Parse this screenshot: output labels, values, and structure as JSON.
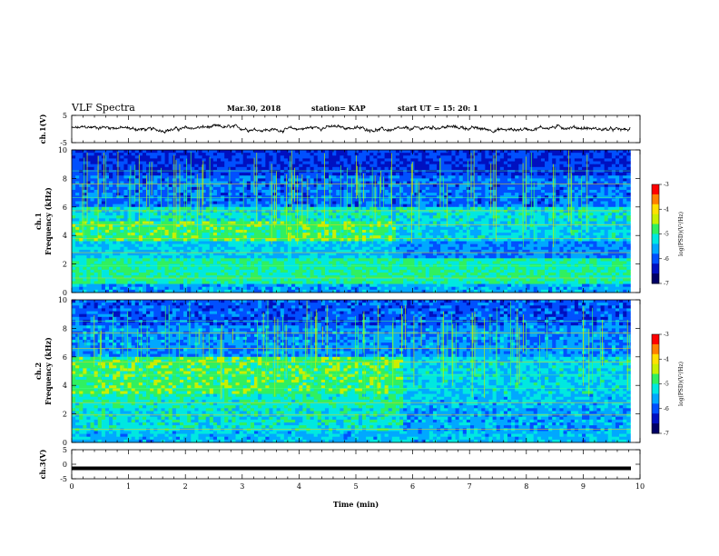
{
  "header": {
    "title": "VLF  Spectra",
    "date": "Mar.30, 2018",
    "station": "station= KAP",
    "start": "start  UT  =    15: 20: 1"
  },
  "colors": {
    "spectrogram_scale": [
      "#000066",
      "#0010c0",
      "#0050ff",
      "#00a8ff",
      "#00e8e0",
      "#30f060",
      "#c8f000",
      "#ffe000",
      "#ff8000",
      "#ff0000",
      "#ffffff"
    ],
    "trace": "#000000"
  },
  "chart_data": [
    {
      "type": "line",
      "panel": "ch1_waveform",
      "ylabel": "ch.1(V)",
      "ylim": [
        -5,
        5
      ],
      "yticks": [
        "5",
        "-5"
      ],
      "xlim": [
        0,
        10
      ],
      "description_series": "voltage trace fluctuating roughly between -1 and +1.5 V"
    },
    {
      "type": "heatmap",
      "panel": "ch1_spectrogram",
      "ylabel": "ch.1\nFrequency  (kHz)",
      "xlim": [
        0,
        10
      ],
      "ylim": [
        0,
        10
      ],
      "yticks": [
        "0",
        "2",
        "4",
        "6",
        "8",
        "10"
      ],
      "colorbar": {
        "label": "log(PSD)(V²/Hz)",
        "range": [
          -7,
          -3
        ],
        "ticks": [
          "-3",
          "-4",
          "-5",
          "-6",
          "-7"
        ]
      },
      "data_end_min": 9.83
    },
    {
      "type": "heatmap",
      "panel": "ch2_spectrogram",
      "ylabel": "ch.2\nFrequency  (kHz)",
      "xlim": [
        0,
        10
      ],
      "ylim": [
        0,
        10
      ],
      "yticks": [
        "0",
        "2",
        "4",
        "6",
        "8",
        "10"
      ],
      "colorbar": {
        "label": "log(PSD)(V²/Hz)",
        "range": [
          -7,
          -3
        ],
        "ticks": [
          "-3",
          "-4",
          "-5",
          "-6",
          "-7"
        ]
      },
      "data_end_min": 9.83
    },
    {
      "type": "line",
      "panel": "ch3_waveform",
      "ylabel": "ch.3(V)",
      "ylim": [
        -5,
        5
      ],
      "yticks": [
        "5",
        "0",
        "-5"
      ],
      "xlim": [
        0,
        10
      ],
      "constant_value": -1.4
    }
  ],
  "xaxis": {
    "label": "Time  (min)",
    "ticks": [
      "0",
      "1",
      "2",
      "3",
      "4",
      "5",
      "6",
      "7",
      "8",
      "9",
      "10"
    ]
  }
}
